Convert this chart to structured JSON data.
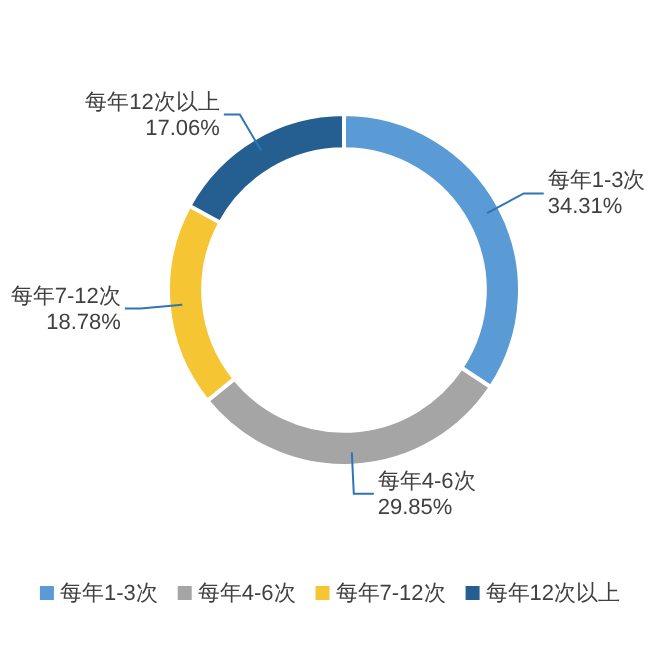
{
  "chart_data": {
    "type": "donut",
    "categories": [
      "每年1-3次",
      "每年4-6次",
      "每年7-12次",
      "每年12次以上"
    ],
    "values": [
      34.31,
      29.85,
      18.78,
      17.06
    ],
    "colors": [
      "#5b9bd5",
      "#a5a5a5",
      "#f5c533",
      "#255e91"
    ],
    "value_labels": [
      "34.31%",
      "29.85%",
      "18.78%",
      "17.06%"
    ],
    "legend": "bottom"
  }
}
